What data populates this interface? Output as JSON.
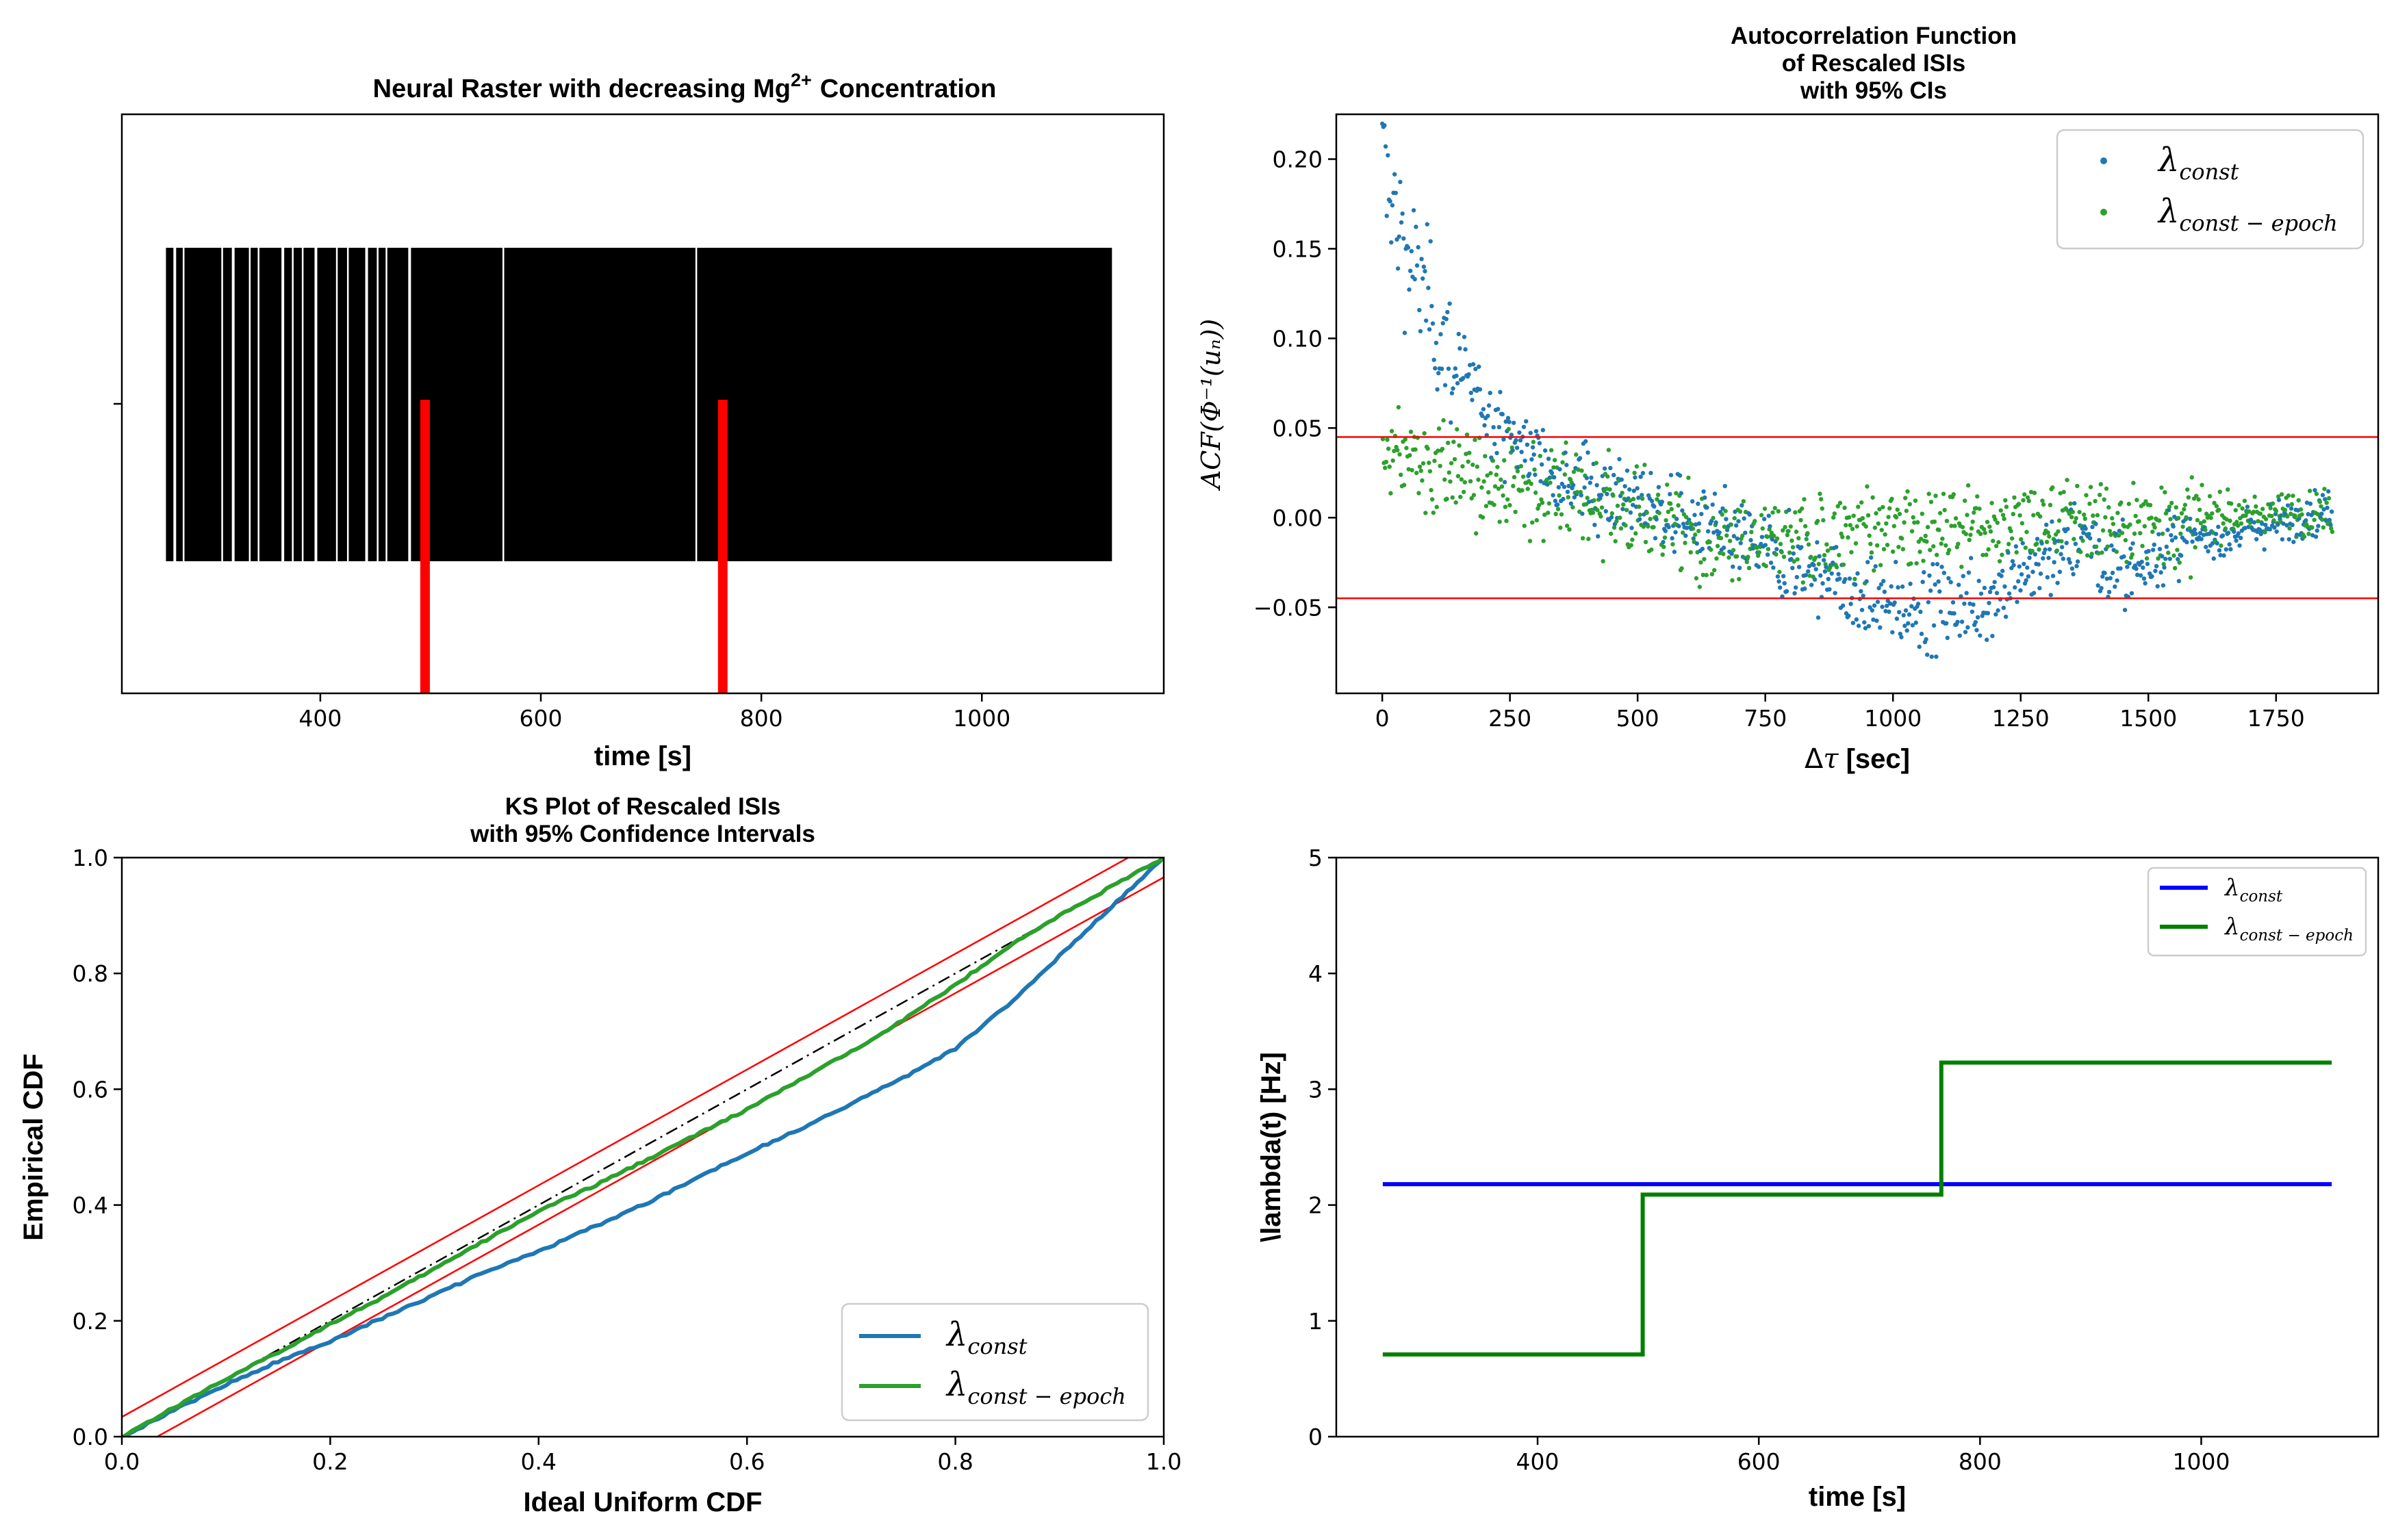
{
  "colors": {
    "blue_scatter": "#1f77b4",
    "green_scatter": "#2ca02c",
    "red": "#ff0000",
    "blue_line": "#0000ff",
    "green_line": "#008000",
    "black": "#000000"
  },
  "chart_data": [
    {
      "type": "raster",
      "title": "Neural Raster with decreasing Mg²⁺ Concentration",
      "title_main": "Neural Raster with decreasing Mg",
      "title_sup": "2+",
      "title_end": "Concentration",
      "xlabel": "time [s]",
      "ylabel": "",
      "xlim": [
        220,
        1165
      ],
      "xticks": [
        "400",
        "600",
        "800",
        "1000"
      ],
      "spike_span": [
        260,
        1118
      ],
      "gaps": [
        268,
        276,
        311,
        321,
        336,
        344,
        366,
        375,
        384,
        396,
        415,
        425,
        442,
        452,
        460,
        481,
        566,
        741
      ],
      "epoch_markers": [
        495,
        765
      ]
    },
    {
      "type": "scatter",
      "title_lines": [
        "Autocorrelation Function",
        "of Rescaled ISIs",
        "with 95% CIs"
      ],
      "xlabel": "Δτ [sec]",
      "ylabel": "ACF(Φ⁻¹(uₙ))",
      "xlim": [
        -90,
        1950
      ],
      "ylim": [
        -0.098,
        0.225
      ],
      "xticks": [
        "0",
        "250",
        "500",
        "750",
        "1000",
        "1250",
        "1500",
        "1750"
      ],
      "yticks": [
        "0.20",
        "0.15",
        "0.10",
        "0.05",
        "0.00",
        "−0.05"
      ],
      "ci_bounds": [
        0.045,
        -0.045
      ],
      "lag_range": [
        0,
        1860
      ],
      "series": [
        {
          "name": "λconst",
          "label_base": "λ",
          "label_sub": "const"
        },
        {
          "name": "λconst−epoch",
          "label_base": "λ",
          "label_sub": "const − epoch"
        }
      ]
    },
    {
      "type": "line",
      "title_lines": [
        "KS Plot of Rescaled ISIs",
        "with 95% Confidence Intervals"
      ],
      "xlabel": "Ideal Uniform CDF",
      "ylabel": "Empirical CDF",
      "xlim": [
        0,
        1
      ],
      "ylim": [
        0,
        1
      ],
      "xticks": [
        "0.0",
        "0.2",
        "0.4",
        "0.6",
        "0.8",
        "1.0"
      ],
      "yticks": [
        "0.0",
        "0.2",
        "0.4",
        "0.6",
        "0.8",
        "1.0"
      ],
      "ci_offset": 0.034,
      "series": [
        {
          "name": "λconst",
          "label_base": "λ",
          "label_sub": "const",
          "x": [
            0,
            0.05,
            0.1,
            0.15,
            0.2,
            0.25,
            0.3,
            0.35,
            0.4,
            0.45,
            0.5,
            0.55,
            0.6,
            0.65,
            0.7,
            0.75,
            0.8,
            0.85,
            0.9,
            0.95,
            1.0
          ],
          "y": [
            0,
            0.045,
            0.09,
            0.13,
            0.165,
            0.205,
            0.245,
            0.285,
            0.32,
            0.36,
            0.4,
            0.445,
            0.49,
            0.53,
            0.575,
            0.62,
            0.67,
            0.745,
            0.83,
            0.915,
            1.0
          ]
        },
        {
          "name": "λconst−epoch",
          "label_base": "λ",
          "label_sub": "const − epoch",
          "x": [
            0,
            0.05,
            0.1,
            0.15,
            0.2,
            0.25,
            0.3,
            0.35,
            0.4,
            0.45,
            0.5,
            0.55,
            0.6,
            0.65,
            0.7,
            0.75,
            0.8,
            0.85,
            0.9,
            0.95,
            1.0
          ],
          "y": [
            0,
            0.05,
            0.1,
            0.145,
            0.195,
            0.24,
            0.29,
            0.34,
            0.39,
            0.43,
            0.475,
            0.52,
            0.565,
            0.615,
            0.665,
            0.72,
            0.78,
            0.845,
            0.9,
            0.95,
            1.0
          ]
        }
      ]
    },
    {
      "type": "line",
      "title": "",
      "xlabel": "time [s]",
      "ylabel": "\\lambda(t) [Hz]",
      "xlim": [
        218,
        1160
      ],
      "ylim": [
        0,
        5
      ],
      "xticks": [
        "400",
        "600",
        "800",
        "1000"
      ],
      "yticks": [
        "0",
        "1",
        "2",
        "3",
        "4",
        "5"
      ],
      "series": [
        {
          "name": "λconst",
          "label_base": "λ",
          "label_sub": "const",
          "x": [
            260,
            1118
          ],
          "y": [
            2.18,
            2.18
          ]
        },
        {
          "name": "λconst−epoch",
          "label_base": "λ",
          "label_sub": "const − epoch",
          "x": [
            260,
            495,
            495,
            765,
            765,
            1118
          ],
          "y": [
            0.71,
            0.71,
            2.09,
            2.09,
            3.23,
            3.23
          ]
        }
      ]
    }
  ]
}
